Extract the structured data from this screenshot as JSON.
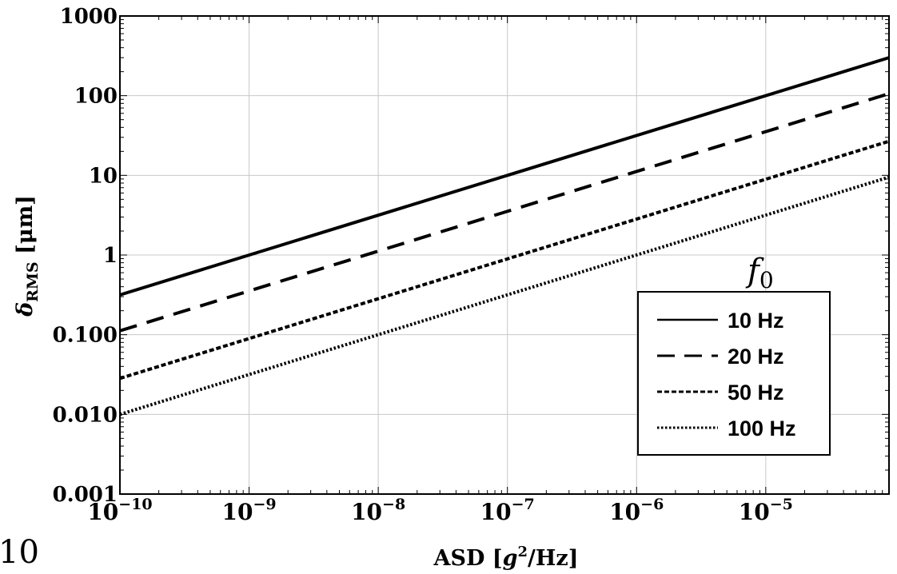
{
  "chart_data": {
    "type": "line",
    "x_scale": "log",
    "y_scale": "log",
    "xlim": [
      1e-10,
      9e-05
    ],
    "ylim": [
      0.001,
      1000
    ],
    "x_ticks": [
      1e-10,
      1e-09,
      1e-08,
      1e-07,
      1e-06,
      1e-05
    ],
    "x_tick_labels": [
      {
        "base": "10",
        "exp": "−10"
      },
      {
        "base": "10",
        "exp": "−9"
      },
      {
        "base": "10",
        "exp": "−8"
      },
      {
        "base": "10",
        "exp": "−7"
      },
      {
        "base": "10",
        "exp": "−6"
      },
      {
        "base": "10",
        "exp": "−5"
      }
    ],
    "y_ticks": [
      0.001,
      0.01,
      0.1,
      1,
      10,
      100,
      1000
    ],
    "y_tick_labels": [
      "0.001",
      "0.010",
      "0.100",
      "1",
      "10",
      "100",
      "1000"
    ],
    "xlabel": {
      "pre": "ASD [",
      "var": "g",
      "sup": "2",
      "post": "/Hz]"
    },
    "ylabel": {
      "var": "δ",
      "sub": "RMS",
      "post": " [μm]"
    },
    "grid": true,
    "legend": {
      "title": {
        "var": "f",
        "sub": "0"
      },
      "placement": "lower-right"
    },
    "series": [
      {
        "name": "10 Hz",
        "style": "solid",
        "x": [
          1e-10,
          9e-05
        ],
        "y": [
          0.316,
          300
        ]
      },
      {
        "name": "20 Hz",
        "style": "dashed",
        "x": [
          1e-10,
          9e-05
        ],
        "y": [
          0.112,
          106
        ]
      },
      {
        "name": "50 Hz",
        "style": "short-dashed",
        "x": [
          1e-10,
          9e-05
        ],
        "y": [
          0.0283,
          26.8
        ]
      },
      {
        "name": "100 Hz",
        "style": "dotted",
        "x": [
          1e-10,
          9e-05
        ],
        "y": [
          0.01,
          9.5
        ]
      }
    ]
  },
  "corner_text": "10"
}
